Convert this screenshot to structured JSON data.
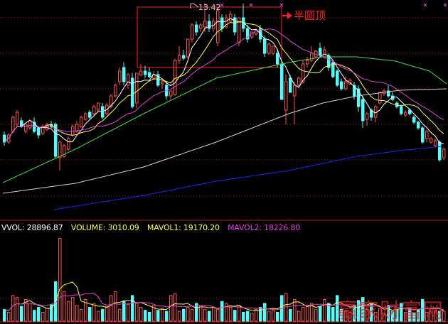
{
  "colors": {
    "up": "#ff5050",
    "down": "#54fcfc",
    "ma5": "#ffffff",
    "ma10": "#ffff40",
    "ma20": "#e040e0",
    "ma60": "#40e040",
    "ma120": "#d0d0d0",
    "ma250": "#2020ff",
    "grid": "#a02020",
    "annotation": "#ff2020"
  },
  "annotation": {
    "label": "半圆顶",
    "high_label": "13.42"
  },
  "watermark": "赢家财富网",
  "volume_legend": {
    "vvol": "VVOL: 28896.87",
    "volume": "VOLUME: 3010.09",
    "mavol1": "MAVOL1: 19170.20",
    "mavol2": "MAVOL2: 18226.80"
  },
  "chart_data": [
    {
      "type": "candlestick",
      "title": "",
      "max_price_label": 13.42,
      "ohlc": [
        [
          9.7,
          9.8,
          9.4,
          9.5
        ],
        [
          9.5,
          9.75,
          9.45,
          9.7
        ],
        [
          9.8,
          10.25,
          9.75,
          10.2
        ],
        [
          10.0,
          10.4,
          9.95,
          10.34
        ],
        [
          10.1,
          10.2,
          9.9,
          9.94
        ],
        [
          9.8,
          10.0,
          9.75,
          10.0
        ],
        [
          9.9,
          10.15,
          9.85,
          10.1
        ],
        [
          10.06,
          10.2,
          9.75,
          9.8
        ],
        [
          9.9,
          9.95,
          9.6,
          9.7
        ],
        [
          9.74,
          10.0,
          9.7,
          9.94
        ],
        [
          9.86,
          10.05,
          9.8,
          10.0
        ],
        [
          10.0,
          10.1,
          9.9,
          9.94
        ],
        [
          10.0,
          10.05,
          9.06,
          9.1
        ],
        [
          9.06,
          9.55,
          8.7,
          9.5
        ],
        [
          9.1,
          9.45,
          9.05,
          9.4
        ],
        [
          9.3,
          9.65,
          9.25,
          9.6
        ],
        [
          9.7,
          10.0,
          9.65,
          9.94
        ],
        [
          9.8,
          10.1,
          9.75,
          10.0
        ],
        [
          9.94,
          10.25,
          9.9,
          10.2
        ],
        [
          10.14,
          10.35,
          10.1,
          10.3
        ],
        [
          10.34,
          10.4,
          10.15,
          10.2
        ],
        [
          10.3,
          10.55,
          10.25,
          10.5
        ],
        [
          10.4,
          10.6,
          10.35,
          10.6
        ],
        [
          10.5,
          10.6,
          10.15,
          10.2
        ],
        [
          10.3,
          10.6,
          10.25,
          10.54
        ],
        [
          10.5,
          10.85,
          10.45,
          10.8
        ],
        [
          10.8,
          11.15,
          10.75,
          11.1
        ],
        [
          11.2,
          11.6,
          11.1,
          11.5
        ],
        [
          11.6,
          11.75,
          11.1,
          11.2
        ],
        [
          11.1,
          11.45,
          11.0,
          11.4
        ],
        [
          11.3,
          11.45,
          10.45,
          10.5
        ],
        [
          10.6,
          11.45,
          10.45,
          11.44
        ],
        [
          11.4,
          11.7,
          11.35,
          11.5
        ],
        [
          11.5,
          11.65,
          11.3,
          11.4
        ],
        [
          11.46,
          11.6,
          11.3,
          11.34
        ],
        [
          11.3,
          11.5,
          11.25,
          11.4
        ],
        [
          11.4,
          11.5,
          11.05,
          11.1
        ],
        [
          11.14,
          11.25,
          11.0,
          11.2
        ],
        [
          11.1,
          11.2,
          10.7,
          10.8
        ],
        [
          10.8,
          10.95,
          10.7,
          10.94
        ],
        [
          10.84,
          11.85,
          10.8,
          11.8
        ],
        [
          11.8,
          12.2,
          11.7,
          11.94
        ],
        [
          11.94,
          12.1,
          11.8,
          11.86
        ],
        [
          11.9,
          12.4,
          11.85,
          12.4
        ],
        [
          12.4,
          12.85,
          12.3,
          12.8
        ],
        [
          12.8,
          12.9,
          12.5,
          12.6
        ],
        [
          12.7,
          12.85,
          12.6,
          12.8
        ],
        [
          12.74,
          13.42,
          12.6,
          12.9
        ],
        [
          12.9,
          13.1,
          12.6,
          12.7
        ],
        [
          12.7,
          13.0,
          12.6,
          12.9
        ],
        [
          12.3,
          13.3,
          12.2,
          13.2
        ],
        [
          13.0,
          13.1,
          12.6,
          12.7
        ],
        [
          12.74,
          13.1,
          12.7,
          13.0
        ],
        [
          12.9,
          13.2,
          12.85,
          13.1
        ],
        [
          13.0,
          13.1,
          12.5,
          12.6
        ],
        [
          12.3,
          13.0,
          12.2,
          13.0
        ],
        [
          13.0,
          13.4,
          12.6,
          12.7
        ],
        [
          12.7,
          12.8,
          12.3,
          12.4
        ],
        [
          12.46,
          12.6,
          12.4,
          12.6
        ],
        [
          12.54,
          12.7,
          12.5,
          12.66
        ],
        [
          12.7,
          12.8,
          12.3,
          12.4
        ],
        [
          12.4,
          12.5,
          11.9,
          12.0
        ],
        [
          12.0,
          12.3,
          11.95,
          12.26
        ],
        [
          12.0,
          12.2,
          11.95,
          12.2
        ],
        [
          12.0,
          12.1,
          11.6,
          11.7
        ],
        [
          11.7,
          11.75,
          10.7,
          10.7
        ],
        [
          10.4,
          11.4,
          10.0,
          11.2
        ],
        [
          11.3,
          11.4,
          10.9,
          10.9
        ],
        [
          10.8,
          11.2,
          10.0,
          11.1
        ],
        [
          11.1,
          11.35,
          11.05,
          11.3
        ],
        [
          11.2,
          11.8,
          11.15,
          11.7
        ],
        [
          11.7,
          11.9,
          11.6,
          11.8
        ],
        [
          11.8,
          12.2,
          11.75,
          12.0
        ],
        [
          11.9,
          12.1,
          11.85,
          12.06
        ],
        [
          12.14,
          12.3,
          11.9,
          11.94
        ],
        [
          11.9,
          12.2,
          11.85,
          12.1
        ],
        [
          11.94,
          12.0,
          11.5,
          11.6
        ],
        [
          11.74,
          11.8,
          11.3,
          11.34
        ],
        [
          11.5,
          11.55,
          11.05,
          11.1
        ],
        [
          11.2,
          11.3,
          10.95,
          11.0
        ],
        [
          11.0,
          11.35,
          10.95,
          11.2
        ],
        [
          11.14,
          11.3,
          11.1,
          11.24
        ],
        [
          11.1,
          11.2,
          10.7,
          10.8
        ],
        [
          11.0,
          11.1,
          10.35,
          10.5
        ],
        [
          10.7,
          10.8,
          9.9,
          10.1
        ],
        [
          10.14,
          10.35,
          9.95,
          10.3
        ],
        [
          10.4,
          10.45,
          10.1,
          10.2
        ],
        [
          10.2,
          10.55,
          10.05,
          10.5
        ],
        [
          10.6,
          10.9,
          10.55,
          10.9
        ],
        [
          10.86,
          11.0,
          10.8,
          10.94
        ],
        [
          10.94,
          11.1,
          10.75,
          10.8
        ],
        [
          10.8,
          10.9,
          10.65,
          10.7
        ],
        [
          10.6,
          10.65,
          10.45,
          10.5
        ],
        [
          10.5,
          10.55,
          10.25,
          10.3
        ],
        [
          10.26,
          10.4,
          10.2,
          10.34
        ],
        [
          10.4,
          10.45,
          10.25,
          10.3
        ],
        [
          10.2,
          10.25,
          10.0,
          10.06
        ],
        [
          10.06,
          10.1,
          9.85,
          9.9
        ],
        [
          9.9,
          9.95,
          9.45,
          9.5
        ],
        [
          9.6,
          9.85,
          9.5,
          9.8
        ],
        [
          9.5,
          9.65,
          9.45,
          9.6
        ],
        [
          9.4,
          9.6,
          9.35,
          9.54
        ],
        [
          9.5,
          9.55,
          8.95,
          9.0
        ],
        [
          9.06,
          9.35,
          9.0,
          9.3
        ]
      ],
      "moving_averages": {
        "ma60": [
          [
            0,
            8.36
          ],
          [
            17,
            9.3
          ],
          [
            33,
            10.3
          ],
          [
            50,
            11.3
          ],
          [
            67,
            11.74
          ],
          [
            75,
            11.9
          ],
          [
            83,
            11.9
          ],
          [
            92,
            11.78
          ],
          [
            100,
            11.5
          ],
          [
            104,
            11.14
          ]
        ],
        "ma120": [
          [
            0,
            8.06
          ],
          [
            17,
            8.34
          ],
          [
            33,
            8.8
          ],
          [
            50,
            9.5
          ],
          [
            67,
            10.3
          ],
          [
            75,
            10.6
          ],
          [
            83,
            10.8
          ],
          [
            93,
            10.96
          ],
          [
            104,
            11.0
          ]
        ],
        "ma250": [
          [
            12,
            7.6
          ],
          [
            33,
            8.0
          ],
          [
            50,
            8.4
          ],
          [
            67,
            8.7
          ],
          [
            83,
            9.1
          ],
          [
            93,
            9.26
          ],
          [
            103,
            9.38
          ]
        ]
      },
      "grid": "on"
    },
    {
      "type": "bar",
      "title": "",
      "volume": [
        12000,
        9000,
        26000,
        24000,
        15000,
        22000,
        18000,
        11000,
        14000,
        9000,
        13000,
        17000,
        40000,
        84000,
        30000,
        20000,
        24000,
        16000,
        12000,
        22000,
        14000,
        18000,
        10000,
        12000,
        15000,
        26000,
        30000,
        12000,
        20000,
        17000,
        26000,
        18000,
        14000,
        11000,
        9000,
        16000,
        11000,
        13000,
        10000,
        26000,
        28000,
        10000,
        12000,
        14000,
        12000,
        18000,
        16000,
        12000,
        10000,
        14000,
        12000,
        20000,
        18000,
        14000,
        11000,
        16000,
        9000,
        10000,
        8000,
        12000,
        14000,
        18000,
        10000,
        11000,
        9000,
        26000,
        28000,
        12000,
        22000,
        10000,
        14000,
        16000,
        18000,
        12000,
        15000,
        22000,
        18000,
        14000,
        26000,
        12000,
        10000,
        9000,
        16000,
        21000,
        24000,
        12000,
        18000,
        9000,
        13000,
        8000,
        16000,
        10000,
        12000,
        18000,
        9000,
        13000,
        8000,
        12000,
        22000,
        9000,
        13000,
        11000,
        10000,
        10000
      ],
      "grid": "on"
    }
  ]
}
